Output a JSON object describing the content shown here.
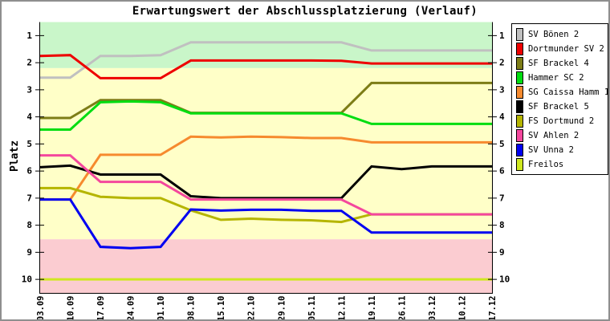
{
  "chart_data": {
    "type": "line",
    "title": "Erwartungswert der Abschlussplatzierung (Verlauf)",
    "ylabel": "Platz",
    "xlabel": "",
    "legend_position": "right",
    "grid": false,
    "y_axis": {
      "label": "Platz",
      "ticks": [
        1,
        2,
        3,
        4,
        5,
        6,
        7,
        8,
        9,
        10
      ],
      "range": [
        0.5,
        10.5
      ],
      "inverted": true,
      "mirrored_right": true
    },
    "x_labels": [
      "03.09",
      "10.09",
      "17.09",
      "24.09",
      "01.10",
      "08.10",
      "15.10",
      "22.10",
      "29.10",
      "05.11",
      "12.11",
      "19.11",
      "26.11",
      "03.12",
      "10.12",
      "17.12"
    ],
    "zones": [
      {
        "from": 0.5,
        "to": 2.2,
        "color": "#c9f6c9"
      },
      {
        "from": 2.2,
        "to": 8.52,
        "color": "#ffffc8"
      },
      {
        "from": 8.52,
        "to": 10.5,
        "color": "#fbccd1"
      }
    ],
    "series": [
      {
        "name": "SV Bönen 2",
        "color": "#c0c0c0",
        "values": [
          2.55,
          2.55,
          1.75,
          1.75,
          1.72,
          1.25,
          1.25,
          1.25,
          1.25,
          1.25,
          1.25,
          1.55,
          1.55,
          1.55,
          1.55,
          1.55
        ]
      },
      {
        "name": "Dortmunder SV 2",
        "color": "#ee0000",
        "values": [
          1.75,
          1.72,
          2.57,
          2.57,
          2.57,
          1.92,
          1.92,
          1.92,
          1.92,
          1.92,
          1.93,
          2.03,
          2.03,
          2.03,
          2.03,
          2.03
        ]
      },
      {
        "name": "SF Brackel 4",
        "color": "#7d7d17",
        "values": [
          4.04,
          4.04,
          3.38,
          3.38,
          3.38,
          3.85,
          3.85,
          3.85,
          3.85,
          3.85,
          3.85,
          2.75,
          2.75,
          2.75,
          2.75,
          2.75
        ]
      },
      {
        "name": "Hammer SC 2",
        "color": "#00dd11",
        "values": [
          4.47,
          4.47,
          3.46,
          3.43,
          3.46,
          3.87,
          3.87,
          3.87,
          3.87,
          3.87,
          3.87,
          4.26,
          4.26,
          4.26,
          4.26,
          4.26
        ]
      },
      {
        "name": "SG Caissa Hamm 1",
        "color": "#f68a2e",
        "values": [
          7.05,
          7.05,
          5.4,
          5.4,
          5.4,
          4.73,
          4.76,
          4.73,
          4.75,
          4.78,
          4.78,
          4.94,
          4.94,
          4.94,
          4.94,
          4.94
        ]
      },
      {
        "name": "SF Brackel 5",
        "color": "#000000",
        "values": [
          5.86,
          5.8,
          6.13,
          6.13,
          6.13,
          6.93,
          7.0,
          7.0,
          7.0,
          7.0,
          7.0,
          5.83,
          5.93,
          5.83,
          5.83,
          5.83
        ]
      },
      {
        "name": "FS Dortmund 2",
        "color": "#b5b500",
        "values": [
          6.63,
          6.63,
          6.95,
          7.0,
          7.0,
          7.45,
          7.8,
          7.76,
          7.8,
          7.82,
          7.88,
          7.6,
          7.6,
          7.6,
          7.6,
          7.6
        ]
      },
      {
        "name": "SV Ahlen 2",
        "color": "#f4479d",
        "values": [
          5.42,
          5.42,
          6.4,
          6.4,
          6.4,
          7.05,
          7.05,
          7.05,
          7.05,
          7.05,
          7.05,
          7.6,
          7.6,
          7.6,
          7.6,
          7.6
        ]
      },
      {
        "name": "SV Unna 2",
        "color": "#0000f0",
        "values": [
          7.05,
          7.05,
          8.8,
          8.85,
          8.8,
          7.42,
          7.46,
          7.43,
          7.43,
          7.47,
          7.47,
          8.27,
          8.27,
          8.27,
          8.27,
          8.27
        ]
      },
      {
        "name": "Freilos",
        "color": "#cfe81f",
        "values": [
          10,
          10,
          10,
          10,
          10,
          10,
          10,
          10,
          10,
          10,
          10,
          10,
          10,
          10,
          10,
          10
        ]
      }
    ]
  }
}
